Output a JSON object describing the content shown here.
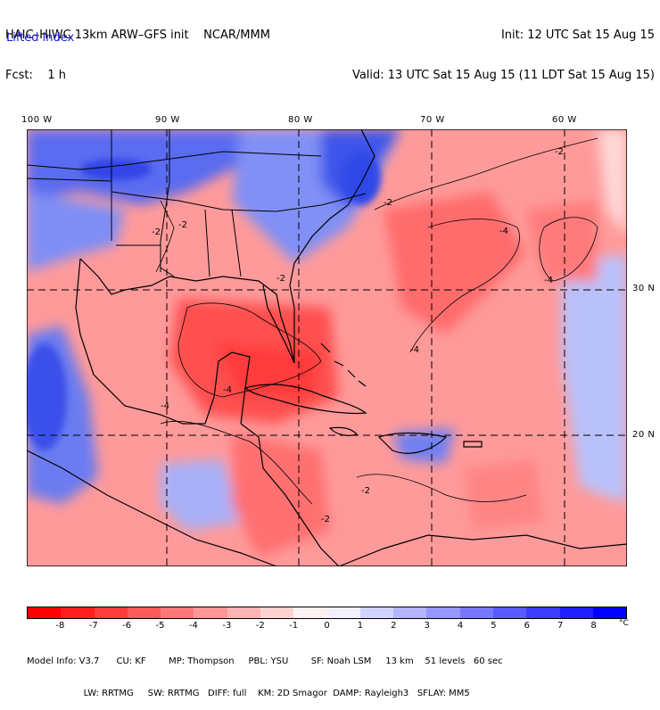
{
  "header": {
    "title_line1": "HAIC–HIWC 13km ARW–GFS init    NCAR/MMM",
    "title_line2": "Fcst:    1 h",
    "init_line": "Init: 12 UTC Sat 15 Aug 15",
    "valid_line": "Valid: 13 UTC Sat 15 Aug 15 (11 LDT Sat 15 Aug 15)",
    "field_name": "Lifted index"
  },
  "axes": {
    "longitude_labels": [
      "100 W",
      "90 W",
      "80 W",
      "70 W",
      "60 W"
    ],
    "latitude_labels": [
      "30 N",
      "20 N"
    ]
  },
  "contour_labels": [
    "-2",
    "-2",
    "-2",
    "-4",
    "-4",
    "-4",
    "-4",
    "-2",
    "-2",
    "-2",
    "-4",
    "-2"
  ],
  "colorbar": {
    "labels": [
      "-8",
      "-7",
      "-6",
      "-5",
      "-4",
      "-3",
      "-2",
      "-1",
      "0",
      "1",
      "2",
      "3",
      "4",
      "5",
      "6",
      "7",
      "8"
    ],
    "unit": "°C",
    "colors": [
      "#ff0000",
      "#ff1e1e",
      "#ff3c3c",
      "#ff5a5a",
      "#ff7878",
      "#ff9696",
      "#ffb4b4",
      "#ffd2d2",
      "#fff0f0",
      "#f0f0ff",
      "#d2d2ff",
      "#b4b4ff",
      "#9696ff",
      "#7878ff",
      "#5a5aff",
      "#3c3cff",
      "#1e1eff",
      "#0000ff"
    ]
  },
  "model_info": {
    "line1": "Model Info: V3.7      CU: KF        MP: Thompson     PBL: YSU        SF: Noah LSM     13 km    51 levels   60 sec",
    "line2": "                    LW: RRTMG     SW: RRTMG   DIFF: full    KM: 2D Smagor  DAMP: Rayleigh3   SFLAY: MM5"
  }
}
